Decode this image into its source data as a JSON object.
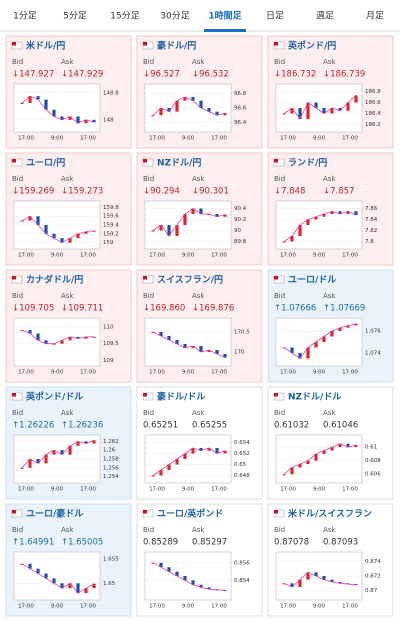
{
  "tabs": [
    "1分足",
    "5分足",
    "15分足",
    "30分足",
    "1時間足",
    "日足",
    "週足",
    "月足"
  ],
  "selected_tab": 4,
  "bid_label": "Bid",
  "ask_label": "Ask",
  "time_labels": [
    "17:00",
    "9:00",
    "17:00"
  ],
  "cards": [
    {
      "name": "米ドル/円",
      "bid": "↓147.927",
      "ask": "↓147.929",
      "direction": "down",
      "ylim": [
        147.7,
        149.0
      ],
      "yticks": [
        148,
        148.8
      ],
      "closes": [
        148.5,
        148.7,
        148.6,
        148.3,
        148.1,
        148.0,
        148.1,
        147.9,
        148.0,
        147.93
      ]
    },
    {
      "name": "豪ドル/円",
      "bid": "↓96.527",
      "ask": "↓96.532",
      "direction": "down",
      "ylim": [
        96.3,
        96.9
      ],
      "yticks": [
        96.4,
        96.6,
        96.8
      ],
      "closes": [
        96.5,
        96.6,
        96.55,
        96.7,
        96.75,
        96.7,
        96.6,
        96.55,
        96.5,
        96.53
      ]
    },
    {
      "name": "英ポンド/円",
      "bid": "↓186.732",
      "ask": "↓186.739",
      "direction": "down",
      "ylim": [
        186.1,
        186.9
      ],
      "yticks": [
        186.2,
        186.4,
        186.6,
        186.8
      ],
      "closes": [
        186.4,
        186.5,
        186.3,
        186.6,
        186.5,
        186.4,
        186.5,
        186.45,
        186.6,
        186.73
      ]
    },
    {
      "name": "ユーロ/円",
      "bid": "↓159.269",
      "ask": "↓159.273",
      "direction": "down",
      "ylim": [
        158.9,
        159.9
      ],
      "yticks": [
        159,
        159.2,
        159.4,
        159.6,
        159.8
      ],
      "closes": [
        159.5,
        159.6,
        159.4,
        159.2,
        159.1,
        159.0,
        159.1,
        159.2,
        159.25,
        159.27
      ]
    },
    {
      "name": "NZドル/円",
      "bid": "↓90.294",
      "ask": "↓90.301",
      "direction": "down",
      "ylim": [
        89.7,
        90.5
      ],
      "yticks": [
        89.8,
        90,
        90.2,
        90.4
      ],
      "closes": [
        90.0,
        90.1,
        89.9,
        90.1,
        90.3,
        90.4,
        90.3,
        90.3,
        90.25,
        90.29
      ]
    },
    {
      "name": "ランド/円",
      "bid": "↓7.848",
      "ask": "↓7.857",
      "direction": "down",
      "ylim": [
        7.79,
        7.87
      ],
      "yticks": [
        7.8,
        7.82,
        7.84,
        7.86
      ],
      "closes": [
        7.8,
        7.81,
        7.83,
        7.84,
        7.845,
        7.85,
        7.855,
        7.85,
        7.855,
        7.848
      ]
    },
    {
      "name": "カナダドル/円",
      "bid": "↓109.705",
      "ask": "↓109.711",
      "direction": "down",
      "ylim": [
        108.9,
        110.2
      ],
      "yticks": [
        109,
        109.5,
        110
      ],
      "closes": [
        109.9,
        109.8,
        109.6,
        109.5,
        109.5,
        109.6,
        109.7,
        109.65,
        109.7,
        109.705
      ]
    },
    {
      "name": "スイスフラン/円",
      "bid": "↓169.860",
      "ask": "↓169.876",
      "direction": "down",
      "ylim": [
        169.7,
        170.8
      ],
      "yticks": [
        170,
        170.5
      ],
      "closes": [
        170.5,
        170.4,
        170.3,
        170.2,
        170.1,
        170.15,
        170.0,
        170.05,
        169.95,
        169.86
      ]
    },
    {
      "name": "ユーロ/ドル",
      "bid": "↑1.07666",
      "ask": "↑1.07669",
      "direction": "up",
      "ylim": [
        1.073,
        1.077
      ],
      "yticks": [
        1.074,
        1.076
      ],
      "closes": [
        1.0745,
        1.074,
        1.0735,
        1.0745,
        1.075,
        1.0755,
        1.076,
        1.0763,
        1.0765,
        1.07666
      ]
    },
    {
      "name": "英ポンド/ドル",
      "bid": "↑1.26226",
      "ask": "↑1.26236",
      "direction": "up",
      "ylim": [
        1.253,
        1.263
      ],
      "yticks": [
        1.254,
        1.256,
        1.258,
        1.26,
        1.262
      ],
      "closes": [
        1.256,
        1.258,
        1.257,
        1.259,
        1.26,
        1.259,
        1.261,
        1.262,
        1.2615,
        1.26226
      ]
    },
    {
      "name": "豪ドル/ドル",
      "bid": "0.65251",
      "ask": "0.65255",
      "direction": null,
      "ylim": [
        0.647,
        0.655
      ],
      "yticks": [
        0.648,
        0.65,
        0.652,
        0.654
      ],
      "closes": [
        0.648,
        0.649,
        0.65,
        0.651,
        0.652,
        0.653,
        0.6525,
        0.653,
        0.652,
        0.65251
      ]
    },
    {
      "name": "NZドル/ドル",
      "bid": "0.61032",
      "ask": "0.61046",
      "direction": null,
      "ylim": [
        0.605,
        0.6115
      ],
      "yticks": [
        0.606,
        0.608,
        0.61
      ],
      "closes": [
        0.606,
        0.607,
        0.6075,
        0.608,
        0.609,
        0.6095,
        0.61,
        0.6105,
        0.61,
        0.61032
      ]
    },
    {
      "name": "ユーロ/豪ドル",
      "bid": "↑1.64991",
      "ask": "↑1.65005",
      "direction": "up",
      "ylim": [
        1.647,
        1.656
      ],
      "yticks": [
        1.65,
        1.655
      ],
      "closes": [
        1.654,
        1.653,
        1.652,
        1.651,
        1.65,
        1.649,
        1.65,
        1.648,
        1.649,
        1.64991
      ]
    },
    {
      "name": "ユーロ/英ポンド",
      "bid": "0.85289",
      "ask": "0.85297",
      "direction": null,
      "ylim": [
        0.852,
        0.857
      ],
      "yticks": [
        0.854,
        0.856
      ],
      "closes": [
        0.856,
        0.8555,
        0.855,
        0.8545,
        0.854,
        0.8535,
        0.8532,
        0.853,
        0.8529,
        0.85289
      ]
    },
    {
      "name": "米ドル/スイスフラン",
      "bid": "0.87078",
      "ask": "0.87093",
      "direction": null,
      "ylim": [
        0.869,
        0.875
      ],
      "yticks": [
        0.87,
        0.872,
        0.874
      ],
      "closes": [
        0.871,
        0.8705,
        0.8715,
        0.8725,
        0.872,
        0.8715,
        0.8712,
        0.871,
        0.8709,
        0.87078
      ]
    }
  ]
}
